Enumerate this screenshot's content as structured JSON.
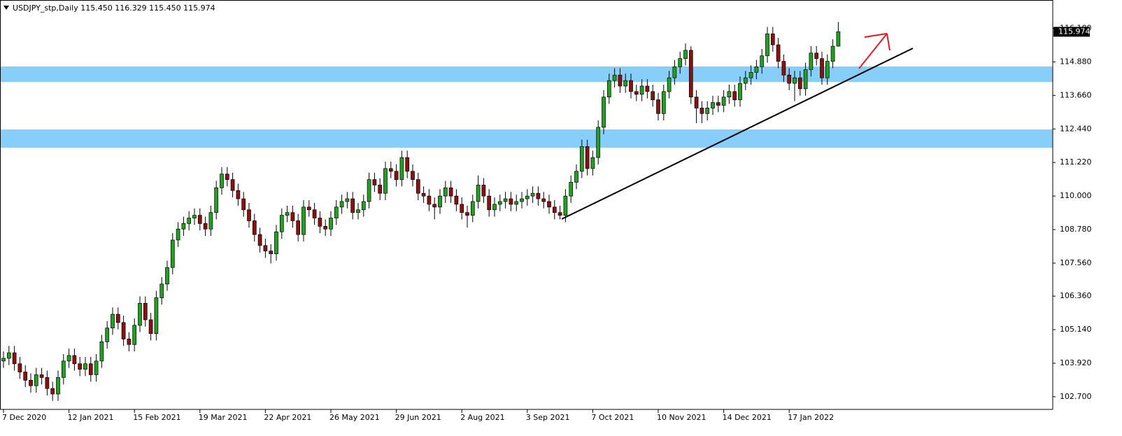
{
  "chart_data": {
    "type": "candlestick",
    "title": "USDJPY_stp,Daily  115.450 116.329 115.450 115.974",
    "up_color": "#22a022",
    "down_color": "#8b1010",
    "last_price": 115.974,
    "ylim": [
      102.24,
      117.13
    ],
    "yticks": [
      {
        "value": 102.7,
        "label": "102.700"
      },
      {
        "value": 103.92,
        "label": "103.920"
      },
      {
        "value": 105.14,
        "label": "105.140"
      },
      {
        "value": 106.36,
        "label": "106.360"
      },
      {
        "value": 107.56,
        "label": "107.560"
      },
      {
        "value": 108.78,
        "label": "108.780"
      },
      {
        "value": 110.0,
        "label": "110.000"
      },
      {
        "value": 111.22,
        "label": "111.220"
      },
      {
        "value": 112.44,
        "label": "112.440"
      },
      {
        "value": 113.66,
        "label": "113.660"
      },
      {
        "value": 114.88,
        "label": "114.880"
      },
      {
        "value": 116.1,
        "label": "116.100"
      }
    ],
    "categories": [
      "7 Dec 2020",
      null,
      null,
      null,
      null,
      null,
      null,
      null,
      null,
      null,
      null,
      null,
      "12 Jan 2021",
      null,
      null,
      null,
      null,
      null,
      null,
      null,
      null,
      null,
      null,
      null,
      "15 Feb 2021",
      null,
      null,
      null,
      null,
      null,
      null,
      null,
      null,
      null,
      null,
      null,
      "19 Mar 2021",
      null,
      null,
      null,
      null,
      null,
      null,
      null,
      null,
      null,
      null,
      null,
      "22 Apr 2021",
      null,
      null,
      null,
      null,
      null,
      null,
      null,
      null,
      null,
      null,
      null,
      "26 May 2021",
      null,
      null,
      null,
      null,
      null,
      null,
      null,
      null,
      null,
      null,
      null,
      "29 Jun 2021",
      null,
      null,
      null,
      null,
      null,
      null,
      null,
      null,
      null,
      null,
      null,
      "2 Aug 2021",
      null,
      null,
      null,
      null,
      null,
      null,
      null,
      null,
      null,
      null,
      null,
      "3 Sep 2021",
      null,
      null,
      null,
      null,
      null,
      null,
      null,
      null,
      null,
      null,
      null,
      "7 Oct 2021",
      null,
      null,
      null,
      null,
      null,
      null,
      null,
      null,
      null,
      null,
      null,
      "10 Nov 2021",
      null,
      null,
      null,
      null,
      null,
      null,
      null,
      null,
      null,
      null,
      null,
      "14 Dec 2021",
      null,
      null,
      null,
      null,
      null,
      null,
      null,
      null,
      null,
      null,
      null,
      "17 Jan 2022",
      null,
      null,
      null,
      null,
      null,
      null,
      null,
      null,
      null
    ],
    "open": [
      104.0,
      104.1,
      104.3,
      103.9,
      103.6,
      103.3,
      103.1,
      103.5,
      103.4,
      103.0,
      102.8,
      103.4,
      104.0,
      104.2,
      103.9,
      103.7,
      103.9,
      103.5,
      104.0,
      104.7,
      105.2,
      105.7,
      105.4,
      104.8,
      104.6,
      105.3,
      106.1,
      105.5,
      105.0,
      106.3,
      106.8,
      107.4,
      108.4,
      108.8,
      109.0,
      109.2,
      109.3,
      109.0,
      108.8,
      109.4,
      110.3,
      110.8,
      110.6,
      110.2,
      109.9,
      109.5,
      109.1,
      108.6,
      108.2,
      108.0,
      107.9,
      108.7,
      109.3,
      109.4,
      109.1,
      108.6,
      109.6,
      109.5,
      109.2,
      108.9,
      108.8,
      109.2,
      109.6,
      109.8,
      109.9,
      109.4,
      109.5,
      109.8,
      110.6,
      110.4,
      110.1,
      111.0,
      110.9,
      110.6,
      111.4,
      110.9,
      110.6,
      110.1,
      110.0,
      109.7,
      109.6,
      110.0,
      110.3,
      110.0,
      109.7,
      109.4,
      109.3,
      109.8,
      110.4,
      110.0,
      109.5,
      109.7,
      109.8,
      109.9,
      109.7,
      109.8,
      109.9,
      110.0,
      110.1,
      109.9,
      109.8,
      109.6,
      109.4,
      109.3,
      110.0,
      110.5,
      110.9,
      111.8,
      111.0,
      111.4,
      112.5,
      113.6,
      114.2,
      114.4,
      114.0,
      114.2,
      113.8,
      113.7,
      114.0,
      113.8,
      113.5,
      113.0,
      113.8,
      114.3,
      114.7,
      115.0,
      115.3,
      113.6,
      113.2,
      113.0,
      113.2,
      113.4,
      113.3,
      113.6,
      113.8,
      113.5,
      114.1,
      114.3,
      114.5,
      114.7,
      115.1,
      115.9,
      115.5,
      114.9,
      114.4,
      114.1,
      114.3,
      113.9,
      114.6,
      115.2,
      115.0,
      114.3,
      114.9,
      115.45
    ],
    "high": [
      104.35,
      104.55,
      104.55,
      104.15,
      103.85,
      103.55,
      103.75,
      103.75,
      103.65,
      103.25,
      103.65,
      104.25,
      104.45,
      104.45,
      104.15,
      104.15,
      104.15,
      104.25,
      104.95,
      105.45,
      105.95,
      105.95,
      105.65,
      105.05,
      105.55,
      106.35,
      106.35,
      105.75,
      106.55,
      107.05,
      107.65,
      108.65,
      109.05,
      109.25,
      109.45,
      109.55,
      109.55,
      109.25,
      109.65,
      110.55,
      111.05,
      111.05,
      110.85,
      110.45,
      110.15,
      109.75,
      109.35,
      108.85,
      108.45,
      108.25,
      108.95,
      109.55,
      109.65,
      109.65,
      109.35,
      109.85,
      109.85,
      109.75,
      109.45,
      109.15,
      109.45,
      109.85,
      110.05,
      110.15,
      110.15,
      109.75,
      110.05,
      110.85,
      110.85,
      110.65,
      111.25,
      111.25,
      111.15,
      111.65,
      111.65,
      111.15,
      110.85,
      110.35,
      110.25,
      109.95,
      110.25,
      110.55,
      110.55,
      110.25,
      109.95,
      109.65,
      110.05,
      110.75,
      110.65,
      110.25,
      109.95,
      110.05,
      110.15,
      110.15,
      110.05,
      110.15,
      110.25,
      110.35,
      110.35,
      110.15,
      110.05,
      109.85,
      109.65,
      110.25,
      110.75,
      111.15,
      112.05,
      112.05,
      111.65,
      112.75,
      113.85,
      114.45,
      114.65,
      114.65,
      114.45,
      114.45,
      114.05,
      114.25,
      114.25,
      114.05,
      113.75,
      114.05,
      114.55,
      114.95,
      115.25,
      115.55,
      115.45,
      113.85,
      113.45,
      113.45,
      113.65,
      113.65,
      113.85,
      114.05,
      114.05,
      114.35,
      114.55,
      114.75,
      114.95,
      115.35,
      116.15,
      116.15,
      115.75,
      115.15,
      114.65,
      114.55,
      114.55,
      114.85,
      115.45,
      115.45,
      115.25,
      115.15,
      115.7,
      116.329
    ],
    "low": [
      103.75,
      103.85,
      103.65,
      103.35,
      103.05,
      102.85,
      102.85,
      103.15,
      102.75,
      102.55,
      102.55,
      103.15,
      103.75,
      103.65,
      103.45,
      103.45,
      103.25,
      103.25,
      103.75,
      104.45,
      104.95,
      105.15,
      104.55,
      104.35,
      104.35,
      105.05,
      105.25,
      104.75,
      104.75,
      106.05,
      106.55,
      107.15,
      108.15,
      108.55,
      108.75,
      108.95,
      108.75,
      108.55,
      108.55,
      109.15,
      110.05,
      110.35,
      109.95,
      109.65,
      109.25,
      108.85,
      108.35,
      107.95,
      107.75,
      107.55,
      107.65,
      108.45,
      109.05,
      108.85,
      108.35,
      108.35,
      109.25,
      108.95,
      108.65,
      108.55,
      108.55,
      108.95,
      109.35,
      109.55,
      109.15,
      109.15,
      109.25,
      109.55,
      110.15,
      109.85,
      109.85,
      110.65,
      110.35,
      110.35,
      110.65,
      110.35,
      109.85,
      109.75,
      109.45,
      109.15,
      109.35,
      109.75,
      109.75,
      109.45,
      109.15,
      108.85,
      109.05,
      109.55,
      109.75,
      109.25,
      109.25,
      109.45,
      109.55,
      109.45,
      109.45,
      109.55,
      109.65,
      109.75,
      109.65,
      109.55,
      109.35,
      109.15,
      109.15,
      109.05,
      109.75,
      110.25,
      110.65,
      110.75,
      110.75,
      111.15,
      112.25,
      113.35,
      113.95,
      113.75,
      113.75,
      113.55,
      113.45,
      113.45,
      113.55,
      113.25,
      112.75,
      112.75,
      113.55,
      114.05,
      114.45,
      114.75,
      113.35,
      112.65,
      112.65,
      112.75,
      112.95,
      113.05,
      113.05,
      113.35,
      113.25,
      113.25,
      113.85,
      114.05,
      114.25,
      114.45,
      114.85,
      115.25,
      114.65,
      114.15,
      113.85,
      113.45,
      113.65,
      113.65,
      114.35,
      114.75,
      114.05,
      114.05,
      114.65,
      115.45
    ],
    "close": [
      104.1,
      104.3,
      103.9,
      103.6,
      103.3,
      103.1,
      103.5,
      103.4,
      103.0,
      102.8,
      103.4,
      104.0,
      104.2,
      103.9,
      103.7,
      103.9,
      103.5,
      104.0,
      104.7,
      105.2,
      105.7,
      105.4,
      104.8,
      104.6,
      105.3,
      106.1,
      105.5,
      105.0,
      106.3,
      106.8,
      107.4,
      108.4,
      108.8,
      109.0,
      109.2,
      109.3,
      109.0,
      108.8,
      109.4,
      110.3,
      110.8,
      110.6,
      110.2,
      109.9,
      109.5,
      109.1,
      108.6,
      108.2,
      108.0,
      107.9,
      108.7,
      109.3,
      109.4,
      109.1,
      108.6,
      109.6,
      109.5,
      109.2,
      108.9,
      108.8,
      109.2,
      109.6,
      109.8,
      109.9,
      109.4,
      109.5,
      109.8,
      110.6,
      110.4,
      110.1,
      111.0,
      110.9,
      110.6,
      111.4,
      110.9,
      110.6,
      110.1,
      110.0,
      109.7,
      109.6,
      110.0,
      110.3,
      110.0,
      109.7,
      109.4,
      109.3,
      109.8,
      110.4,
      110.0,
      109.5,
      109.7,
      109.8,
      109.9,
      109.7,
      109.8,
      109.9,
      110.0,
      110.1,
      109.9,
      109.8,
      109.6,
      109.4,
      109.3,
      110.0,
      110.5,
      110.9,
      111.8,
      111.0,
      111.4,
      112.5,
      113.6,
      114.2,
      114.4,
      114.0,
      114.2,
      113.8,
      113.7,
      114.0,
      113.8,
      113.5,
      113.0,
      113.8,
      114.3,
      114.7,
      115.0,
      115.3,
      113.6,
      113.2,
      113.0,
      113.2,
      113.4,
      113.3,
      113.6,
      113.8,
      113.5,
      114.1,
      114.3,
      114.5,
      114.7,
      115.1,
      115.9,
      115.5,
      114.9,
      114.4,
      114.1,
      114.3,
      113.9,
      114.6,
      115.2,
      115.0,
      114.3,
      114.9,
      115.45,
      115.974
    ]
  }
}
